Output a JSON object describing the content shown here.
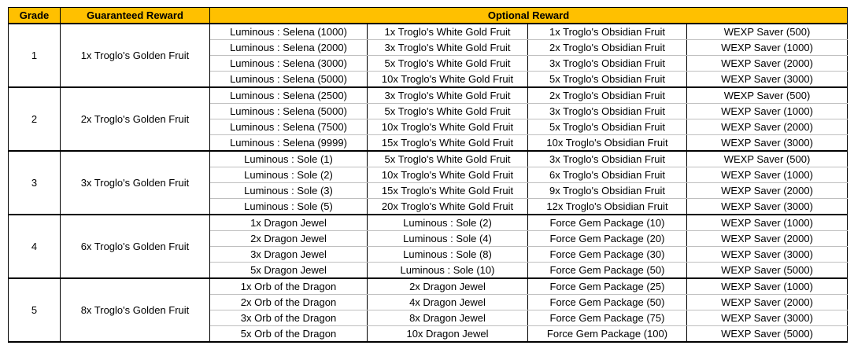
{
  "header": {
    "grade": "Grade",
    "guaranteed": "Guaranteed Reward",
    "optional": "Optional Reward"
  },
  "colors": {
    "header_bg": "#ffc000",
    "border": "#000000",
    "inner_border": "#bfbfbf"
  },
  "groups": [
    {
      "grade": "1",
      "guaranteed": "1x Troglo's Golden Fruit",
      "rows": [
        [
          "Luminous : Selena (1000)",
          "1x Troglo's White Gold Fruit",
          "1x Troglo's Obsidian Fruit",
          "WEXP Saver (500)"
        ],
        [
          "Luminous : Selena (2000)",
          "3x Troglo's White Gold Fruit",
          "2x Troglo's Obsidian Fruit",
          "WEXP Saver (1000)"
        ],
        [
          "Luminous : Selena (3000)",
          "5x Troglo's White Gold Fruit",
          "3x Troglo's Obsidian Fruit",
          "WEXP Saver (2000)"
        ],
        [
          "Luminous : Selena (5000)",
          "10x Troglo's White Gold Fruit",
          "5x Troglo's Obsidian Fruit",
          "WEXP Saver (3000)"
        ]
      ]
    },
    {
      "grade": "2",
      "guaranteed": "2x Troglo's Golden Fruit",
      "rows": [
        [
          "Luminous : Selena (2500)",
          "3x Troglo's White Gold Fruit",
          "2x Troglo's Obsidian Fruit",
          "WEXP Saver (500)"
        ],
        [
          "Luminous : Selena (5000)",
          "5x Troglo's White Gold Fruit",
          "3x Troglo's Obsidian Fruit",
          "WEXP Saver (1000)"
        ],
        [
          "Luminous : Selena (7500)",
          "10x Troglo's White Gold Fruit",
          "5x Troglo's Obsidian Fruit",
          "WEXP Saver (2000)"
        ],
        [
          "Luminous : Selena (9999)",
          "15x Troglo's White Gold Fruit",
          "10x Troglo's Obsidian Fruit",
          "WEXP Saver (3000)"
        ]
      ]
    },
    {
      "grade": "3",
      "guaranteed": "3x Troglo's Golden Fruit",
      "rows": [
        [
          "Luminous : Sole (1)",
          "5x Troglo's White Gold Fruit",
          "3x Troglo's Obsidian Fruit",
          "WEXP Saver (500)"
        ],
        [
          "Luminous : Sole (2)",
          "10x Troglo's White Gold Fruit",
          "6x Troglo's Obsidian Fruit",
          "WEXP Saver (1000)"
        ],
        [
          "Luminous : Sole (3)",
          "15x Troglo's White Gold Fruit",
          "9x Troglo's Obsidian Fruit",
          "WEXP Saver (2000)"
        ],
        [
          "Luminous : Sole (5)",
          "20x Troglo's White Gold Fruit",
          "12x Troglo's Obsidian Fruit",
          "WEXP Saver (3000)"
        ]
      ]
    },
    {
      "grade": "4",
      "guaranteed": "6x Troglo's Golden Fruit",
      "rows": [
        [
          "1x Dragon Jewel",
          "Luminous : Sole (2)",
          "Force Gem Package (10)",
          "WEXP Saver (1000)"
        ],
        [
          "2x Dragon Jewel",
          "Luminous : Sole (4)",
          "Force Gem Package (20)",
          "WEXP Saver (2000)"
        ],
        [
          "3x Dragon Jewel",
          "Luminous : Sole (8)",
          "Force Gem Package (30)",
          "WEXP Saver (3000)"
        ],
        [
          "5x Dragon Jewel",
          "Luminous : Sole (10)",
          "Force Gem Package (50)",
          "WEXP Saver (5000)"
        ]
      ]
    },
    {
      "grade": "5",
      "guaranteed": "8x Troglo's Golden Fruit",
      "rows": [
        [
          "1x Orb of the Dragon",
          "2x Dragon Jewel",
          "Force Gem Package (25)",
          "WEXP Saver (1000)"
        ],
        [
          "2x Orb of the Dragon",
          "4x Dragon Jewel",
          "Force Gem Package (50)",
          "WEXP Saver (2000)"
        ],
        [
          "3x Orb of the Dragon",
          "8x Dragon Jewel",
          "Force Gem Package (75)",
          "WEXP Saver (3000)"
        ],
        [
          "5x Orb of the Dragon",
          "10x Dragon Jewel",
          "Force Gem Package (100)",
          "WEXP Saver (5000)"
        ]
      ]
    }
  ]
}
